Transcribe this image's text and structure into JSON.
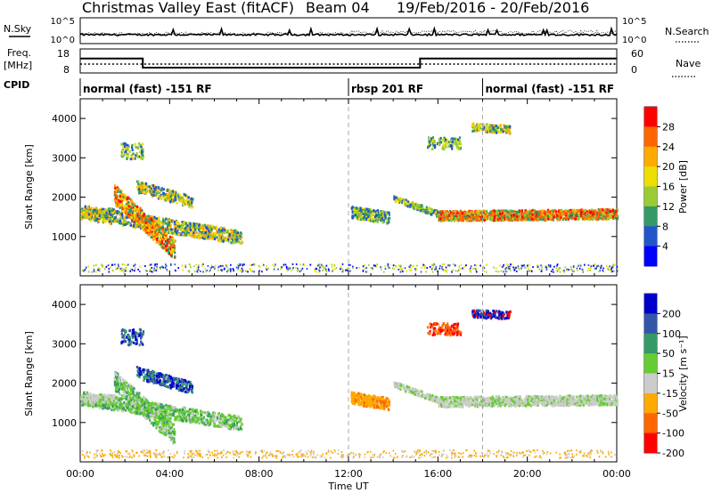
{
  "title": {
    "station": "Christmas Valley East (fitACF)",
    "beam": "Beam 04",
    "dates": "19/Feb/2016 - 20/Feb/2016"
  },
  "header_panel": {
    "nsky_label": "N.Sky",
    "nsearch_label": "N.Search",
    "left_ticks": [
      "10^5",
      "10^0"
    ],
    "right_ticks": [
      "10^5",
      "10^0"
    ],
    "freq_label_1": "Freq.",
    "freq_label_2": "[MHz]",
    "freq_ticks": [
      "18",
      "8"
    ],
    "nave_ticks": [
      "60",
      "0"
    ],
    "nave_label": "Nave",
    "cpid_label": "CPID",
    "cpid_segments": [
      {
        "label": "normal (fast) -151 RF",
        "start_h": 0,
        "end_h": 12
      },
      {
        "label": "rbsp 201 RF",
        "start_h": 12,
        "end_h": 18
      },
      {
        "label": "normal (fast) -151 RF",
        "start_h": 18,
        "end_h": 24
      }
    ],
    "freq_steps": [
      {
        "start_h": 0,
        "end_h": 2.8,
        "level": 0.35
      },
      {
        "start_h": 2.8,
        "end_h": 15.2,
        "level": 0.82
      },
      {
        "start_h": 15.2,
        "end_h": 24,
        "level": 0.35
      }
    ]
  },
  "chart_data": [
    {
      "type": "heatmap",
      "name": "power",
      "ylabel": "Slant Range [km]",
      "yticks": [
        "1000",
        "2000",
        "3000",
        "4000"
      ],
      "ylim": [
        0,
        4500
      ],
      "xlim": [
        0,
        24
      ],
      "colorbar_label": "Power [dB]",
      "colorbar_ticks": [
        "28",
        "24",
        "20",
        "16",
        "12",
        "8",
        "4"
      ],
      "colorbar_colors": [
        "#ff0000",
        "#ff6600",
        "#ffaa00",
        "#eedd00",
        "#99cc33",
        "#339966",
        "#2255cc",
        "#0000ff"
      ],
      "dashed_lines_h": [
        12,
        18
      ]
    },
    {
      "type": "heatmap",
      "name": "velocity",
      "ylabel": "Slant Range [km]",
      "yticks": [
        "1000",
        "2000",
        "3000",
        "4000"
      ],
      "ylim": [
        0,
        4500
      ],
      "xlim": [
        0,
        24
      ],
      "colorbar_label": "Velocity [m s⁻¹]",
      "colorbar_ticks": [
        "200",
        "100",
        "50",
        "15",
        "-15",
        "-50",
        "-100",
        "-200"
      ],
      "colorbar_colors": [
        "#0000cc",
        "#3355aa",
        "#339966",
        "#66cc33",
        "#cccccc",
        "#ffaa00",
        "#ff6600",
        "#ff0000"
      ],
      "dashed_lines_h": [
        12,
        18
      ]
    }
  ],
  "xaxis": {
    "ticks": [
      "00:00",
      "04:00",
      "08:00",
      "12:00",
      "16:00",
      "20:00",
      "00:00"
    ],
    "label": "Time UT"
  }
}
